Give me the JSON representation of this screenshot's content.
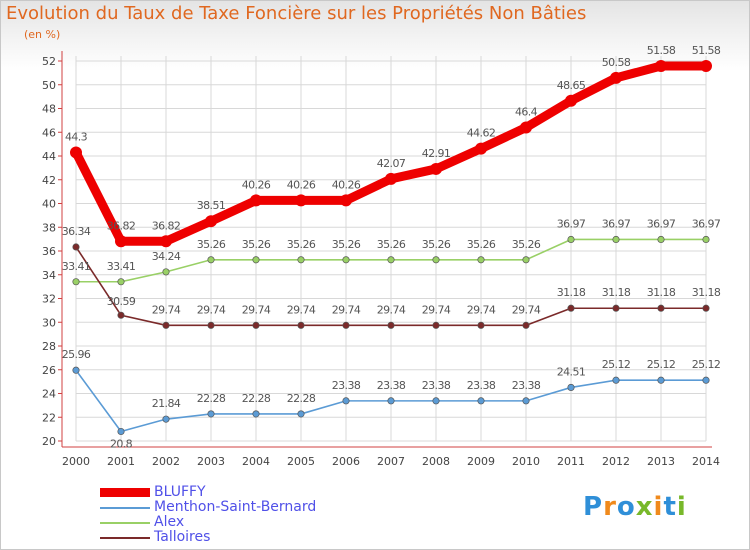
{
  "title": "Evolution du Taux de Taxe Foncière sur les Propriétés Non Bâties",
  "unit_label": "(en %)",
  "logo_text": "Proxiti",
  "colors": {
    "title": "#e06820",
    "legend_text": "#5050e8",
    "axis": "#d04040",
    "grid": "#d8d8d8"
  },
  "chart_data": {
    "type": "line",
    "x": [
      "2000",
      "2001",
      "2002",
      "2003",
      "2004",
      "2005",
      "2006",
      "2007",
      "2008",
      "2009",
      "2010",
      "2011",
      "2012",
      "2013",
      "2014"
    ],
    "ylim": [
      20,
      52
    ],
    "yticks": [
      20,
      22,
      24,
      26,
      28,
      30,
      32,
      34,
      36,
      38,
      40,
      42,
      44,
      46,
      48,
      50,
      52
    ],
    "grid": true,
    "legend_position": "bottom-left",
    "series": [
      {
        "name": "BLUFFY",
        "color": "#ee0000",
        "values": [
          44.3,
          36.82,
          36.82,
          38.51,
          40.26,
          40.26,
          40.26,
          42.07,
          42.91,
          44.62,
          46.4,
          48.65,
          50.58,
          51.58,
          51.58
        ],
        "labels": [
          "44.3",
          "36.82",
          "36.82",
          "38.51",
          "40.26",
          "40.26",
          "40.26",
          "42.07",
          "42.91",
          "44.62",
          "46.4",
          "48.65",
          "50.58",
          "51.58",
          "51.58"
        ]
      },
      {
        "name": "Menthon-Saint-Bernard",
        "color": "#5b9bd5",
        "values": [
          25.96,
          20.8,
          21.84,
          22.28,
          22.28,
          22.28,
          23.38,
          23.38,
          23.38,
          23.38,
          23.38,
          24.51,
          25.12,
          25.12,
          25.12
        ],
        "labels": [
          "25.96",
          "20.8",
          "21.84",
          "22.28",
          "22.28",
          "22.28",
          "23.38",
          "23.38",
          "23.38",
          "23.38",
          "23.38",
          "24.51",
          "25.12",
          "25.12",
          "25.12"
        ]
      },
      {
        "name": "Alex",
        "color": "#99d066",
        "values": [
          33.41,
          33.41,
          34.24,
          35.26,
          35.26,
          35.26,
          35.26,
          35.26,
          35.26,
          35.26,
          35.26,
          36.97,
          36.97,
          36.97,
          36.97
        ],
        "labels": [
          "33.41",
          "33.41",
          "34.24",
          "35.26",
          "35.26",
          "35.26",
          "35.26",
          "35.26",
          "35.26",
          "35.26",
          "35.26",
          "36.97",
          "36.97",
          "36.97",
          "36.97"
        ]
      },
      {
        "name": "Talloires",
        "color": "#7b2a2a",
        "values": [
          36.34,
          30.59,
          29.74,
          29.74,
          29.74,
          29.74,
          29.74,
          29.74,
          29.74,
          29.74,
          29.74,
          31.18,
          31.18,
          31.18,
          31.18
        ],
        "labels": [
          "36.34",
          "30.59",
          "29.74",
          "29.74",
          "29.74",
          "29.74",
          "29.74",
          "29.74",
          "29.74",
          "29.74",
          "29.74",
          "31.18",
          "31.18",
          "31.18",
          "31.18"
        ]
      }
    ]
  }
}
